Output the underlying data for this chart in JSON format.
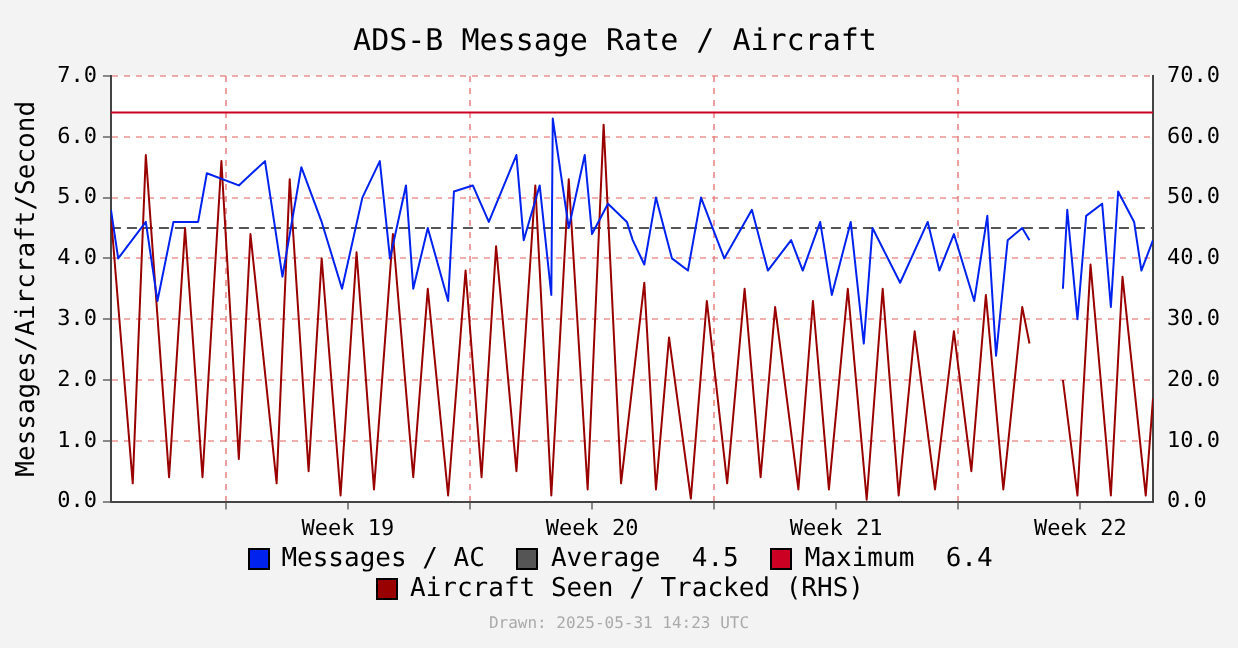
{
  "chart_data": {
    "type": "line",
    "title": "ADS-B Message Rate / Aircraft",
    "ylabel": "Messages/Aircraft/Second",
    "annotations": [
      "Drawn: 2025-05-31 14:23 UTC"
    ],
    "xlim": [
      "2025-05-01T17:00",
      "2025-05-31T14:00"
    ],
    "xticks": [
      {
        "value": "2025-05-05",
        "label": null
      },
      {
        "value": "2025-05-08T12:00",
        "label": "Week 19"
      },
      {
        "value": "2025-05-12",
        "label": null
      },
      {
        "value": "2025-05-15T12:00",
        "label": "Week 20"
      },
      {
        "value": "2025-05-19",
        "label": null
      },
      {
        "value": "2025-05-22T12:00",
        "label": "Week 21"
      },
      {
        "value": "2025-05-26",
        "label": null
      },
      {
        "value": "2025-05-29T12:00",
        "label": "Week 22"
      }
    ],
    "ylim": [
      0,
      7
    ],
    "yticks": [
      {
        "value": 0,
        "label": "0.0"
      },
      {
        "value": 1,
        "label": "1.0"
      },
      {
        "value": 2,
        "label": "2.0"
      },
      {
        "value": 3,
        "label": "3.0"
      },
      {
        "value": 4,
        "label": "4.0"
      },
      {
        "value": 5,
        "label": "5.0"
      },
      {
        "value": 6,
        "label": "6.0"
      },
      {
        "value": 7,
        "label": "7.0"
      }
    ],
    "y2lim": [
      0,
      70
    ],
    "y2ticks": [
      {
        "value": 0,
        "label": "0.0"
      },
      {
        "value": 10,
        "label": "10.0"
      },
      {
        "value": 20,
        "label": "20.0"
      },
      {
        "value": 30,
        "label": "30.0"
      },
      {
        "value": 40,
        "label": "40.0"
      },
      {
        "value": 50,
        "label": "50.0"
      },
      {
        "value": 60,
        "label": "60.0"
      },
      {
        "value": 70,
        "label": "70.0"
      }
    ],
    "grid": true,
    "legend": "bottom",
    "marker": "none",
    "ref_lines": [
      {
        "axis": "y",
        "value": 4.5,
        "label": "Average  4.5",
        "color": "#555555",
        "line_style": "dashed"
      },
      {
        "axis": "y",
        "value": 6.4,
        "label": "Maximum  6.4",
        "color": "#cc0022",
        "line_style": "solid"
      }
    ],
    "series": [
      {
        "name": "Messages / AC",
        "color": "#0022ee",
        "x": [
          "2025-05-01T17:00",
          "2025-05-01T22:00",
          "2025-05-02T17:00",
          "2025-05-03T01:00",
          "2025-05-03T12:00",
          "2025-05-04T05:00",
          "2025-05-04T11:00",
          "2025-05-05T09:00",
          "2025-05-06T03:00",
          "2025-05-06T15:00",
          "2025-05-07T04:00",
          "2025-05-07T18:00",
          "2025-05-08T08:00",
          "2025-05-08T22:00",
          "2025-05-09T10:00",
          "2025-05-09T17:00",
          "2025-05-10T04:00",
          "2025-05-10T09:00",
          "2025-05-10T19:00",
          "2025-05-11T09:00",
          "2025-05-11T13:00",
          "2025-05-12T02:00",
          "2025-05-12T13:00",
          "2025-05-13T08:00",
          "2025-05-13T13:00",
          "2025-05-14T00:00",
          "2025-05-14T08:00",
          "2025-05-14T09:00",
          "2025-05-14T20:00",
          "2025-05-15T07:00",
          "2025-05-15T12:00",
          "2025-05-15T23:00",
          "2025-05-16T12:00",
          "2025-05-16T16:00",
          "2025-05-17T00:00",
          "2025-05-17T08:00",
          "2025-05-17T19:00",
          "2025-05-18T06:00",
          "2025-05-18T15:00",
          "2025-05-19T07:00",
          "2025-05-20T02:00",
          "2025-05-20T13:00",
          "2025-05-21T05:00",
          "2025-05-21T13:00",
          "2025-05-22T01:00",
          "2025-05-22T09:00",
          "2025-05-22T22:00",
          "2025-05-23T07:00",
          "2025-05-23T13:00",
          "2025-05-24T08:00",
          "2025-05-25T03:00",
          "2025-05-25T11:00",
          "2025-05-25T21:00",
          "2025-05-26T11:00",
          "2025-05-26T20:00",
          "2025-05-27T02:00",
          "2025-05-27T10:00",
          "2025-05-27T20:00",
          "2025-05-28T01:00",
          "2025-05-28T06:00",
          "2025-05-29T00:00",
          "2025-05-29T03:00",
          "2025-05-29T10:00",
          "2025-05-29T16:00",
          "2025-05-30T03:00",
          "2025-05-30T09:00",
          "2025-05-30T14:00",
          "2025-05-31T01:00",
          "2025-05-31T06:00",
          "2025-05-31T14:00"
        ],
        "values": [
          4.8,
          4.0,
          4.6,
          3.3,
          4.6,
          4.6,
          5.4,
          5.2,
          5.6,
          3.7,
          5.5,
          4.6,
          3.5,
          5.0,
          5.6,
          4.0,
          5.2,
          3.5,
          4.5,
          3.3,
          5.1,
          5.2,
          4.6,
          5.7,
          4.3,
          5.2,
          3.4,
          6.3,
          4.5,
          5.7,
          4.4,
          4.9,
          4.6,
          4.3,
          3.9,
          5.0,
          4.0,
          3.8,
          5.0,
          4.0,
          4.8,
          3.8,
          4.3,
          3.8,
          4.6,
          3.4,
          4.6,
          2.6,
          4.5,
          3.6,
          4.6,
          3.8,
          4.4,
          3.3,
          4.7,
          2.4,
          4.3,
          4.5,
          4.3,
          null,
          3.5,
          4.8,
          3.0,
          4.7,
          4.9,
          3.2,
          5.1,
          4.6,
          3.8,
          4.3
        ]
      },
      {
        "name": "Aircraft Seen / Tracked (RHS)",
        "color": "#990000",
        "axis": "y2",
        "x": [
          "2025-05-01T17:00",
          "2025-05-02T08:00",
          "2025-05-02T17:00",
          "2025-05-03T09:00",
          "2025-05-03T20:00",
          "2025-05-04T08:00",
          "2025-05-04T21:00",
          "2025-05-05T09:00",
          "2025-05-05T17:00",
          "2025-05-06T11:00",
          "2025-05-06T20:00",
          "2025-05-07T09:00",
          "2025-05-07T18:00",
          "2025-05-08T07:00",
          "2025-05-08T18:00",
          "2025-05-09T06:00",
          "2025-05-09T19:00",
          "2025-05-10T09:00",
          "2025-05-10T19:00",
          "2025-05-11T09:00",
          "2025-05-11T21:00",
          "2025-05-12T08:00",
          "2025-05-12T18:00",
          "2025-05-13T08:00",
          "2025-05-13T21:00",
          "2025-05-14T08:00",
          "2025-05-14T20:00",
          "2025-05-15T09:00",
          "2025-05-15T20:00",
          "2025-05-16T08:00",
          "2025-05-17T00:00",
          "2025-05-17T08:00",
          "2025-05-17T17:00",
          "2025-05-18T08:00",
          "2025-05-18T19:00",
          "2025-05-19T09:00",
          "2025-05-19T21:00",
          "2025-05-20T08:00",
          "2025-05-20T18:00",
          "2025-05-21T10:00",
          "2025-05-21T20:00",
          "2025-05-22T07:00",
          "2025-05-22T20:00",
          "2025-05-23T09:00",
          "2025-05-23T20:00",
          "2025-05-24T07:00",
          "2025-05-24T18:00",
          "2025-05-25T08:00",
          "2025-05-25T21:00",
          "2025-05-26T09:00",
          "2025-05-26T19:00",
          "2025-05-27T07:00",
          "2025-05-27T20:00",
          "2025-05-28T01:00",
          "2025-05-28T06:00",
          "2025-05-29T00:00",
          "2025-05-29T10:00",
          "2025-05-29T19:00",
          "2025-05-30T09:00",
          "2025-05-30T17:00",
          "2025-05-31T09:00",
          "2025-05-31T14:00"
        ],
        "values": [
          47,
          3,
          57,
          4,
          45,
          4,
          56,
          7,
          44,
          3,
          53,
          5,
          40,
          1,
          41,
          2,
          44,
          4,
          35,
          1,
          38,
          4,
          42,
          5,
          52,
          1,
          53,
          2,
          62,
          3,
          36,
          2,
          27,
          0.5,
          33,
          3,
          35,
          4,
          32,
          2,
          33,
          2,
          35,
          0.3,
          35,
          1,
          28,
          2,
          28,
          5,
          34,
          2,
          32,
          26,
          null,
          20,
          1,
          39,
          1,
          37,
          1,
          17
        ]
      }
    ]
  }
}
